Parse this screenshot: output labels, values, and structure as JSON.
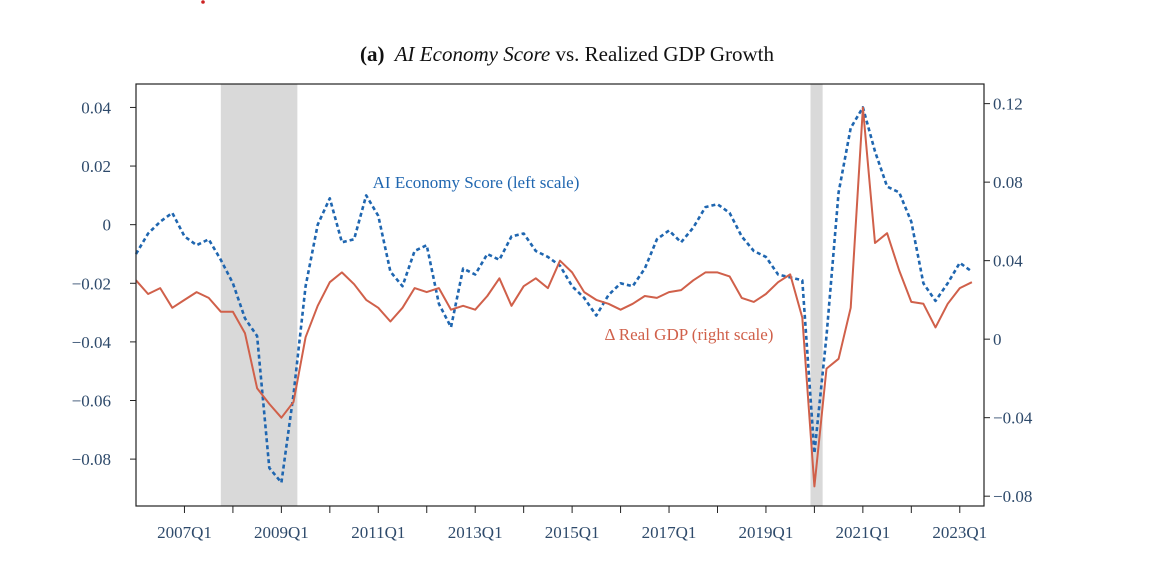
{
  "chart_data": {
    "type": "line",
    "title_prefix": "(a)",
    "title_italic": "AI Economy Score",
    "title_rest": " vs. Realized GDP Growth",
    "x_tick_labels": [
      "2007Q1",
      "2009Q1",
      "2011Q1",
      "2013Q1",
      "2015Q1",
      "2017Q1",
      "2019Q1",
      "2021Q1",
      "2023Q1"
    ],
    "x_tick_positions": [
      2007.0,
      2009.0,
      2011.0,
      2013.0,
      2015.0,
      2017.0,
      2019.0,
      2021.0,
      2023.0
    ],
    "x_minor_ticks": [
      2008.0,
      2010.0,
      2012.0,
      2014.0,
      2016.0,
      2018.0,
      2020.0,
      2022.0
    ],
    "xlim": [
      2006.0,
      2023.5
    ],
    "left_axis": {
      "ylim": [
        -0.096,
        0.048
      ],
      "ticks": [
        0.04,
        0.02,
        0,
        -0.02,
        -0.04,
        -0.06,
        -0.08
      ],
      "tick_labels": [
        "0.04",
        "0.02",
        "0",
        "−0.02",
        "−0.04",
        "−0.06",
        "−0.08"
      ]
    },
    "right_axis": {
      "ylim": [
        -0.085,
        0.13
      ],
      "ticks": [
        0.12,
        0.08,
        0.04,
        0,
        -0.04,
        -0.08
      ],
      "tick_labels": [
        "0.12",
        "0.08",
        "0.04",
        "0",
        "−0.04",
        "−0.08"
      ]
    },
    "recessions": [
      {
        "start": 2007.75,
        "end": 2009.33
      },
      {
        "start": 2019.92,
        "end": 2020.17
      }
    ],
    "series": [
      {
        "name": "AI Economy Score",
        "label": "AI Economy Score (left scale)",
        "axis": "left",
        "style": "dotted",
        "color": "#1f66b0",
        "x": [
          2006.0,
          2006.25,
          2006.5,
          2006.75,
          2007.0,
          2007.25,
          2007.5,
          2007.75,
          2008.0,
          2008.25,
          2008.5,
          2008.75,
          2009.0,
          2009.25,
          2009.5,
          2009.75,
          2010.0,
          2010.25,
          2010.5,
          2010.75,
          2011.0,
          2011.25,
          2011.5,
          2011.75,
          2012.0,
          2012.25,
          2012.5,
          2012.75,
          2013.0,
          2013.25,
          2013.5,
          2013.75,
          2014.0,
          2014.25,
          2014.5,
          2014.75,
          2015.0,
          2015.25,
          2015.5,
          2015.75,
          2016.0,
          2016.25,
          2016.5,
          2016.75,
          2017.0,
          2017.25,
          2017.5,
          2017.75,
          2018.0,
          2018.25,
          2018.5,
          2018.75,
          2019.0,
          2019.25,
          2019.5,
          2019.75,
          2020.0,
          2020.25,
          2020.5,
          2020.75,
          2021.0,
          2021.25,
          2021.5,
          2021.75,
          2022.0,
          2022.25,
          2022.5,
          2022.75,
          2023.0,
          2023.25
        ],
        "values": [
          -0.01,
          -0.003,
          0.001,
          0.004,
          -0.004,
          -0.007,
          -0.005,
          -0.012,
          -0.02,
          -0.032,
          -0.038,
          -0.083,
          -0.088,
          -0.058,
          -0.021,
          0.0,
          0.009,
          -0.006,
          -0.005,
          0.01,
          0.003,
          -0.016,
          -0.021,
          -0.009,
          -0.007,
          -0.027,
          -0.035,
          -0.015,
          -0.017,
          -0.01,
          -0.012,
          -0.004,
          -0.003,
          -0.009,
          -0.011,
          -0.014,
          -0.021,
          -0.025,
          -0.031,
          -0.024,
          -0.02,
          -0.021,
          -0.015,
          -0.005,
          -0.002,
          -0.006,
          -0.001,
          0.006,
          0.007,
          0.004,
          -0.004,
          -0.009,
          -0.011,
          -0.017,
          -0.018,
          -0.019,
          -0.078,
          -0.038,
          0.011,
          0.033,
          0.04,
          0.025,
          0.013,
          0.011,
          0.001,
          -0.02,
          -0.026,
          -0.02,
          -0.013,
          -0.016
        ]
      },
      {
        "name": "Δ Real GDP",
        "label": "Δ Real GDP (right scale)",
        "axis": "right",
        "style": "solid",
        "color": "#d0604a",
        "x": [
          2006.0,
          2006.25,
          2006.5,
          2006.75,
          2007.0,
          2007.25,
          2007.5,
          2007.75,
          2008.0,
          2008.25,
          2008.5,
          2008.75,
          2009.0,
          2009.25,
          2009.5,
          2009.75,
          2010.0,
          2010.25,
          2010.5,
          2010.75,
          2011.0,
          2011.25,
          2011.5,
          2011.75,
          2012.0,
          2012.25,
          2012.5,
          2012.75,
          2013.0,
          2013.25,
          2013.5,
          2013.75,
          2014.0,
          2014.25,
          2014.5,
          2014.75,
          2015.0,
          2015.25,
          2015.5,
          2015.75,
          2016.0,
          2016.25,
          2016.5,
          2016.75,
          2017.0,
          2017.25,
          2017.5,
          2017.75,
          2018.0,
          2018.25,
          2018.5,
          2018.75,
          2019.0,
          2019.25,
          2019.5,
          2019.75,
          2020.0,
          2020.25,
          2020.5,
          2020.75,
          2021.0,
          2021.25,
          2021.5,
          2021.75,
          2022.0,
          2022.25,
          2022.5,
          2022.75,
          2023.0,
          2023.25
        ],
        "values": [
          0.03,
          0.023,
          0.026,
          0.016,
          0.02,
          0.024,
          0.021,
          0.014,
          0.014,
          0.003,
          -0.025,
          -0.033,
          -0.04,
          -0.032,
          0.001,
          0.017,
          0.029,
          0.034,
          0.028,
          0.02,
          0.016,
          0.009,
          0.016,
          0.026,
          0.024,
          0.026,
          0.015,
          0.017,
          0.015,
          0.022,
          0.031,
          0.017,
          0.027,
          0.031,
          0.026,
          0.04,
          0.034,
          0.024,
          0.02,
          0.018,
          0.015,
          0.018,
          0.022,
          0.021,
          0.024,
          0.025,
          0.03,
          0.034,
          0.034,
          0.032,
          0.021,
          0.019,
          0.023,
          0.029,
          0.033,
          0.011,
          -0.075,
          -0.015,
          -0.01,
          0.016,
          0.118,
          0.049,
          0.054,
          0.035,
          0.019,
          0.018,
          0.006,
          0.018,
          0.026,
          0.029
        ]
      }
    ]
  }
}
